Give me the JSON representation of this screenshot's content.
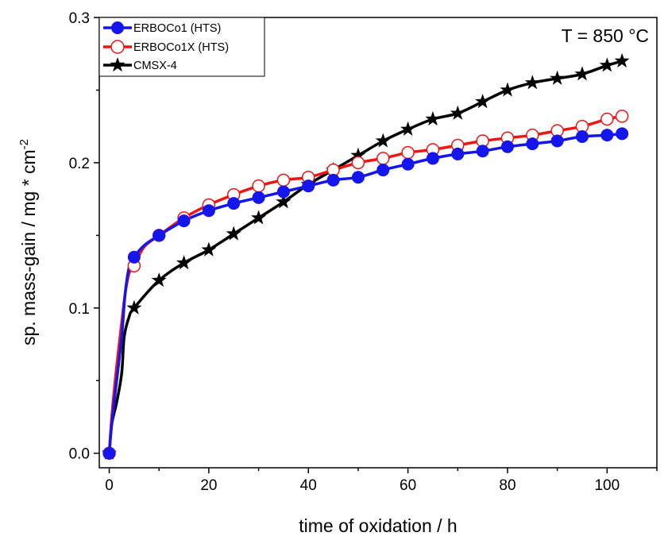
{
  "chart_data": {
    "type": "line",
    "xlabel": "time of oxidation / h",
    "ylabel_main": "sp. mass-gain / mg * cm",
    "ylabel_sup": "-2",
    "annotation": "T = 850 °C",
    "xlim": [
      -2,
      110
    ],
    "ylim": [
      -0.01,
      0.3
    ],
    "x_ticks": [
      0,
      20,
      40,
      60,
      80,
      100
    ],
    "y_ticks": [
      0.0,
      0.1,
      0.2,
      0.3
    ],
    "y_tick_labels": [
      "0.0",
      "0.1",
      "0.2",
      "0.3"
    ],
    "legend_position": "top-left",
    "series": [
      {
        "name": "ERBOCo1 (HTS)",
        "color": "#1515ee",
        "marker": "filled-circle",
        "x": [
          0,
          5,
          10,
          15,
          20,
          25,
          30,
          35,
          40,
          45,
          50,
          55,
          60,
          65,
          70,
          75,
          80,
          85,
          90,
          95,
          100,
          103
        ],
        "y": [
          0.0,
          0.135,
          0.15,
          0.16,
          0.167,
          0.172,
          0.176,
          0.18,
          0.184,
          0.188,
          0.19,
          0.195,
          0.199,
          0.203,
          0.206,
          0.208,
          0.211,
          0.213,
          0.215,
          0.218,
          0.219,
          0.22
        ],
        "curve": [
          [
            0,
            0
          ],
          [
            0.5,
            0.02
          ],
          [
            1.5,
            0.05
          ],
          [
            2.5,
            0.08
          ],
          [
            3.2,
            0.11
          ],
          [
            4,
            0.128
          ],
          [
            5,
            0.135
          ],
          [
            7,
            0.143
          ],
          [
            10,
            0.15
          ],
          [
            15,
            0.16
          ],
          [
            20,
            0.167
          ],
          [
            25,
            0.172
          ],
          [
            30,
            0.176
          ],
          [
            35,
            0.18
          ],
          [
            40,
            0.184
          ],
          [
            45,
            0.188
          ],
          [
            50,
            0.19
          ],
          [
            55,
            0.195
          ],
          [
            60,
            0.199
          ],
          [
            65,
            0.203
          ],
          [
            70,
            0.206
          ],
          [
            75,
            0.208
          ],
          [
            80,
            0.211
          ],
          [
            85,
            0.213
          ],
          [
            90,
            0.215
          ],
          [
            95,
            0.218
          ],
          [
            100,
            0.219
          ],
          [
            103,
            0.22
          ]
        ]
      },
      {
        "name": "ERBOCo1X (HTS)",
        "color": "#ee1515",
        "marker": "open-circle",
        "x": [
          0,
          5,
          10,
          15,
          20,
          25,
          30,
          35,
          40,
          45,
          50,
          55,
          60,
          65,
          70,
          75,
          80,
          85,
          90,
          95,
          100,
          103
        ],
        "y": [
          0.0,
          0.129,
          0.15,
          0.162,
          0.171,
          0.178,
          0.184,
          0.188,
          0.19,
          0.195,
          0.2,
          0.203,
          0.207,
          0.209,
          0.212,
          0.215,
          0.217,
          0.219,
          0.222,
          0.225,
          0.23,
          0.232
        ],
        "curve": [
          [
            0,
            0
          ],
          [
            0.5,
            0.025
          ],
          [
            1.5,
            0.06
          ],
          [
            2.5,
            0.09
          ],
          [
            3.2,
            0.11
          ],
          [
            4,
            0.124
          ],
          [
            5,
            0.129
          ],
          [
            7,
            0.142
          ],
          [
            10,
            0.15
          ],
          [
            15,
            0.162
          ],
          [
            20,
            0.171
          ],
          [
            25,
            0.178
          ],
          [
            30,
            0.184
          ],
          [
            35,
            0.188
          ],
          [
            40,
            0.19
          ],
          [
            45,
            0.195
          ],
          [
            50,
            0.2
          ],
          [
            55,
            0.203
          ],
          [
            60,
            0.207
          ],
          [
            65,
            0.209
          ],
          [
            70,
            0.212
          ],
          [
            75,
            0.215
          ],
          [
            80,
            0.217
          ],
          [
            85,
            0.219
          ],
          [
            90,
            0.222
          ],
          [
            95,
            0.225
          ],
          [
            100,
            0.23
          ],
          [
            103,
            0.232
          ]
        ]
      },
      {
        "name": "CMSX-4",
        "color": "#000000",
        "marker": "star",
        "x": [
          0,
          5,
          10,
          15,
          20,
          25,
          30,
          35,
          40,
          45,
          50,
          55,
          60,
          65,
          70,
          75,
          80,
          85,
          90,
          95,
          100,
          103
        ],
        "y": [
          0.0,
          0.1,
          0.119,
          0.131,
          0.14,
          0.151,
          0.162,
          0.173,
          0.185,
          0.195,
          0.205,
          0.215,
          0.223,
          0.23,
          0.234,
          0.242,
          0.25,
          0.255,
          0.258,
          0.261,
          0.267,
          0.27
        ],
        "curve": [
          [
            0,
            0
          ],
          [
            0.5,
            0.02
          ],
          [
            1.5,
            0.035
          ],
          [
            2.5,
            0.055
          ],
          [
            3,
            0.08
          ],
          [
            4,
            0.094
          ],
          [
            5,
            0.1
          ],
          [
            10,
            0.119
          ],
          [
            15,
            0.131
          ],
          [
            20,
            0.14
          ],
          [
            25,
            0.151
          ],
          [
            30,
            0.162
          ],
          [
            35,
            0.173
          ],
          [
            40,
            0.185
          ],
          [
            45,
            0.195
          ],
          [
            50,
            0.205
          ],
          [
            55,
            0.215
          ],
          [
            60,
            0.223
          ],
          [
            65,
            0.23
          ],
          [
            70,
            0.234
          ],
          [
            75,
            0.242
          ],
          [
            80,
            0.25
          ],
          [
            85,
            0.255
          ],
          [
            90,
            0.258
          ],
          [
            95,
            0.261
          ],
          [
            100,
            0.267
          ],
          [
            103,
            0.27
          ]
        ]
      }
    ]
  }
}
